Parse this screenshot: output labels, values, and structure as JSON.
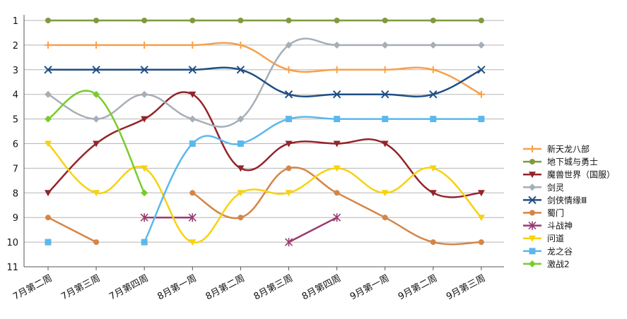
{
  "chart_data": {
    "type": "line",
    "title": "",
    "xlabel": "",
    "ylabel": "",
    "ylim": [
      1,
      11
    ],
    "y_reversed": true,
    "y_ticks": [
      "1",
      "2",
      "3",
      "4",
      "5",
      "6",
      "7",
      "8",
      "9",
      "10",
      "11"
    ],
    "grid": "horizontal",
    "legend": "right",
    "smooth": true,
    "categories": [
      "7月第二周",
      "7月第三周",
      "7月第四周",
      "8月第一周",
      "8月第二周",
      "8月第三周",
      "8月第四周",
      "9月第一周",
      "9月第二周",
      "9月第三周"
    ],
    "series": [
      {
        "name": "新天龙八部",
        "color": "#f7a04b",
        "marker": "plus",
        "values": [
          2,
          2,
          2,
          2,
          2,
          3,
          3,
          3,
          3,
          4
        ]
      },
      {
        "name": "地下城与勇士",
        "color": "#7f9b3e",
        "marker": "circle",
        "values": [
          1,
          1,
          1,
          1,
          1,
          1,
          1,
          1,
          1,
          1
        ]
      },
      {
        "name": "魔兽世界（国服）",
        "color": "#94232a",
        "marker": "triangle-down",
        "values": [
          8,
          6,
          5,
          4,
          7,
          6,
          6,
          6,
          8,
          8
        ]
      },
      {
        "name": "剑灵",
        "color": "#a6aeb6",
        "marker": "diamond",
        "values": [
          4,
          5,
          4,
          5,
          5,
          2,
          2,
          2,
          2,
          2
        ]
      },
      {
        "name": "剑侠情缘Ⅲ",
        "color": "#1f4e83",
        "marker": "x",
        "values": [
          3,
          3,
          3,
          3,
          3,
          4,
          4,
          4,
          4,
          3
        ]
      },
      {
        "name": "蜀门",
        "color": "#d48547",
        "marker": "circle",
        "values": [
          9,
          10,
          null,
          8,
          9,
          7,
          8,
          9,
          10,
          10
        ]
      },
      {
        "name": "斗战神",
        "color": "#9a3a70",
        "marker": "asterisk",
        "values": [
          null,
          null,
          9,
          9,
          null,
          10,
          9,
          null,
          null,
          null
        ]
      },
      {
        "name": "问道",
        "color": "#f7d20f",
        "marker": "triangle-down",
        "values": [
          6,
          8,
          7,
          10,
          8,
          8,
          7,
          8,
          7,
          9
        ]
      },
      {
        "name": "龙之谷",
        "color": "#5bb8ec",
        "marker": "square",
        "values": [
          10,
          null,
          10,
          6,
          6,
          5,
          5,
          5,
          5,
          5
        ]
      },
      {
        "name": "激战2",
        "color": "#79cc2c",
        "marker": "diamond",
        "values": [
          5,
          4,
          8,
          null,
          null,
          null,
          null,
          null,
          null,
          null
        ]
      }
    ]
  }
}
